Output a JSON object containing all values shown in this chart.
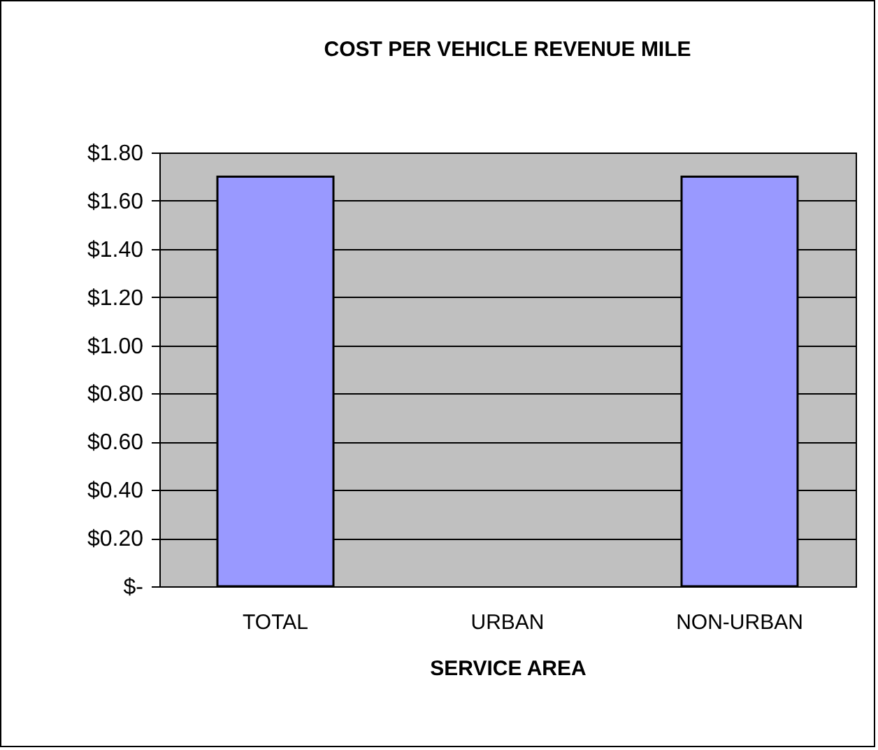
{
  "chart_data": {
    "type": "bar",
    "title": "COST PER VEHICLE REVENUE MILE",
    "xlabel": "SERVICE AREA",
    "categories": [
      "TOTAL",
      "URBAN",
      "NON-URBAN"
    ],
    "values": [
      1.7,
      null,
      1.7
    ],
    "color": "#9999ff",
    "ylim": [
      0,
      1.8
    ],
    "yticks": [
      {
        "value": 0,
        "label": "$-"
      },
      {
        "value": 0.2,
        "label": "$0.20"
      },
      {
        "value": 0.4,
        "label": "$0.40"
      },
      {
        "value": 0.6,
        "label": "$0.60"
      },
      {
        "value": 0.8,
        "label": "$0.80"
      },
      {
        "value": 1.0,
        "label": "$1.00"
      },
      {
        "value": 1.2,
        "label": "$1.20"
      },
      {
        "value": 1.4,
        "label": "$1.40"
      },
      {
        "value": 1.6,
        "label": "$1.60"
      },
      {
        "value": 1.8,
        "label": "$1.80"
      }
    ],
    "grid": "y"
  }
}
